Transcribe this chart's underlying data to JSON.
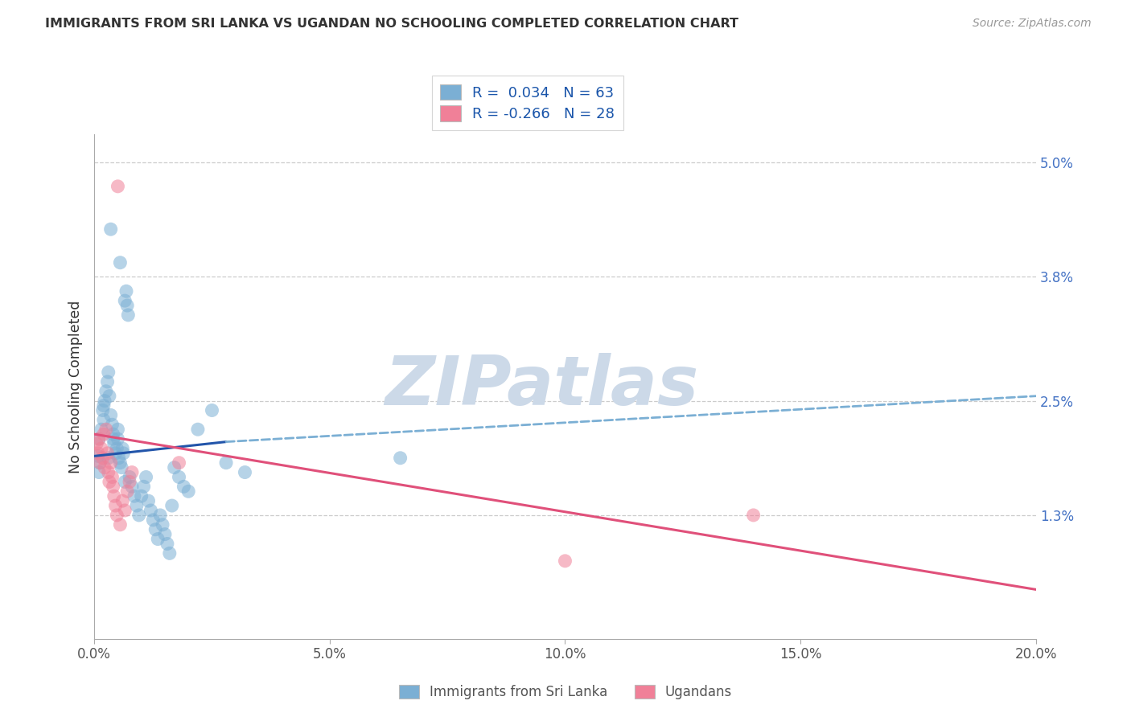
{
  "title": "IMMIGRANTS FROM SRI LANKA VS UGANDAN NO SCHOOLING COMPLETED CORRELATION CHART",
  "source": "Source: ZipAtlas.com",
  "ylabel": "No Schooling Completed",
  "ytick_values": [
    1.3,
    2.5,
    3.8,
    5.0
  ],
  "ytick_labels": [
    "1.3%",
    "2.5%",
    "3.8%",
    "5.0%"
  ],
  "xtick_values": [
    0.0,
    5.0,
    10.0,
    15.0,
    20.0
  ],
  "xtick_labels": [
    "0.0%",
    "5.0%",
    "10.0%",
    "15.0%",
    "20.0%"
  ],
  "xlim": [
    0.0,
    20.0
  ],
  "ylim": [
    0.0,
    5.3
  ],
  "sri_lanka_color": "#7bafd4",
  "ugandan_color": "#f08098",
  "blue_line_color": "#2255aa",
  "pink_line_color": "#e0507a",
  "dashed_line_color": "#7bafd4",
  "watermark_text": "ZIPatlas",
  "watermark_color": "#ccd9e8",
  "legend_sri_label": "R =  0.034   N = 63",
  "legend_ug_label": "R = -0.266   N = 28",
  "bottom_sri_label": "Immigrants from Sri Lanka",
  "bottom_ug_label": "Ugandans",
  "blue_line_x": [
    0.0,
    2.8
  ],
  "blue_line_y": [
    1.92,
    2.07
  ],
  "dashed_line_x": [
    2.8,
    20.0
  ],
  "dashed_line_y": [
    2.07,
    2.55
  ],
  "pink_line_x": [
    0.0,
    20.0
  ],
  "pink_line_y": [
    2.15,
    0.52
  ],
  "sri_lanka_pts_x": [
    0.08,
    0.1,
    0.1,
    0.12,
    0.15,
    0.18,
    0.2,
    0.22,
    0.25,
    0.28,
    0.3,
    0.32,
    0.35,
    0.38,
    0.4,
    0.42,
    0.45,
    0.48,
    0.5,
    0.52,
    0.55,
    0.58,
    0.6,
    0.62,
    0.65,
    0.68,
    0.7,
    0.72,
    0.75,
    0.8,
    0.85,
    0.9,
    0.95,
    1.0,
    1.05,
    1.1,
    1.15,
    1.2,
    1.25,
    1.3,
    1.35,
    1.4,
    1.45,
    1.5,
    1.55,
    1.6,
    1.65,
    1.7,
    1.8,
    1.9,
    2.0,
    2.2,
    2.5,
    2.8,
    3.2,
    0.35,
    0.5,
    0.65,
    0.2,
    0.3,
    0.4,
    0.55,
    6.5
  ],
  "sri_lanka_pts_y": [
    1.92,
    2.1,
    1.75,
    1.85,
    2.2,
    2.4,
    2.3,
    2.5,
    2.6,
    2.7,
    2.8,
    2.55,
    2.35,
    2.25,
    2.15,
    2.05,
    1.95,
    2.0,
    2.1,
    1.9,
    1.85,
    1.8,
    2.0,
    1.95,
    3.55,
    3.65,
    3.5,
    3.4,
    1.7,
    1.6,
    1.5,
    1.4,
    1.3,
    1.5,
    1.6,
    1.7,
    1.45,
    1.35,
    1.25,
    1.15,
    1.05,
    1.3,
    1.2,
    1.1,
    1.0,
    0.9,
    1.4,
    1.8,
    1.7,
    1.6,
    1.55,
    2.2,
    2.4,
    1.85,
    1.75,
    4.3,
    2.2,
    1.65,
    2.45,
    1.9,
    2.1,
    3.95,
    1.9
  ],
  "ugandan_pts_x": [
    0.05,
    0.08,
    0.1,
    0.12,
    0.15,
    0.18,
    0.2,
    0.22,
    0.25,
    0.28,
    0.3,
    0.32,
    0.35,
    0.38,
    0.4,
    0.42,
    0.45,
    0.48,
    0.5,
    0.55,
    0.6,
    0.65,
    0.7,
    0.75,
    0.8,
    1.8,
    10.0,
    14.0
  ],
  "ugandan_pts_y": [
    2.05,
    1.95,
    2.1,
    1.85,
    2.0,
    1.9,
    2.15,
    1.8,
    2.2,
    1.95,
    1.75,
    1.65,
    1.85,
    1.7,
    1.6,
    1.5,
    1.4,
    1.3,
    4.75,
    1.2,
    1.45,
    1.35,
    1.55,
    1.65,
    1.75,
    1.85,
    0.82,
    1.3
  ]
}
